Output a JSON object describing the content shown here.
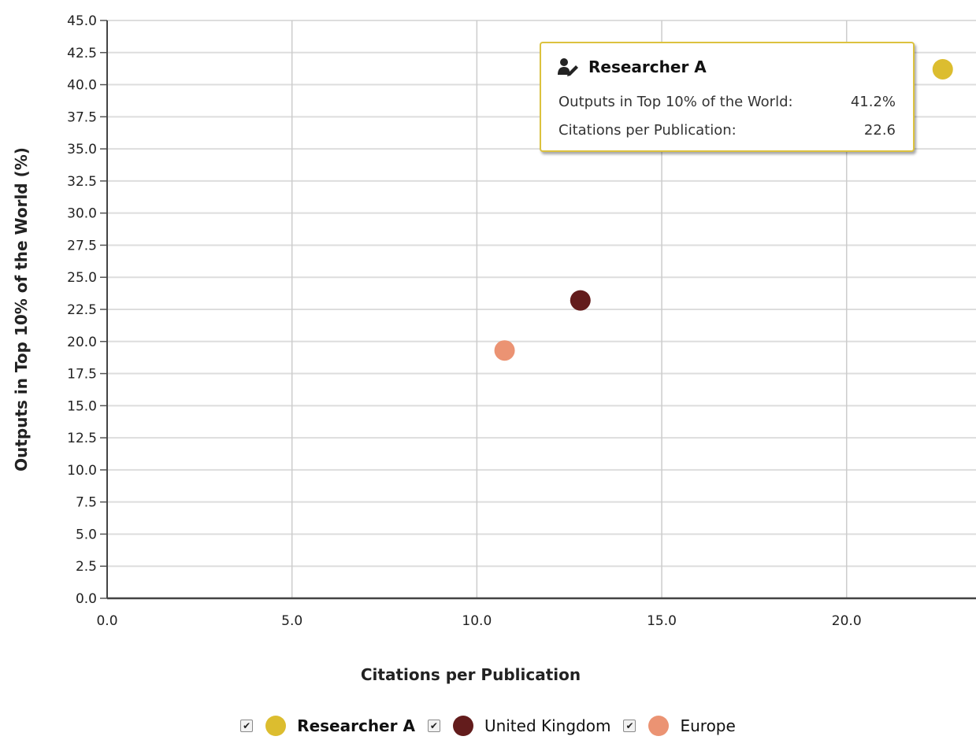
{
  "chart_data": {
    "type": "scatter",
    "xlabel": "Citations per Publication",
    "ylabel": "Outputs in Top 10% of the World (%)",
    "xlim": [
      0,
      23.5
    ],
    "ylim": [
      0,
      45
    ],
    "x_ticks": [
      "0.0",
      "5.0",
      "10.0",
      "15.0",
      "20.0"
    ],
    "y_ticks": [
      "0.0",
      "2.5",
      "5.0",
      "7.5",
      "10.0",
      "12.5",
      "15.0",
      "17.5",
      "20.0",
      "22.5",
      "25.0",
      "27.5",
      "30.0",
      "32.5",
      "35.0",
      "37.5",
      "40.0",
      "42.5",
      "45.0"
    ],
    "grid": true,
    "legend_position": "bottom",
    "series": [
      {
        "name": "Researcher A",
        "color": "#dcbd2f",
        "x": 22.6,
        "y": 41.2,
        "bold": true
      },
      {
        "name": "United Kingdom",
        "color": "#631c1c",
        "x": 12.8,
        "y": 23.2,
        "bold": false
      },
      {
        "name": "Europe",
        "color": "#eb9373",
        "x": 10.75,
        "y": 19.3,
        "bold": false
      }
    ]
  },
  "tooltip": {
    "icon": "researcher-icon",
    "name": "Researcher A",
    "rows": [
      {
        "label": "Outputs in Top 10% of the World:",
        "value": "41.2%"
      },
      {
        "label": "Citations per Publication:",
        "value": "22.6"
      }
    ]
  },
  "legend": {
    "check_glyph": "✔"
  }
}
